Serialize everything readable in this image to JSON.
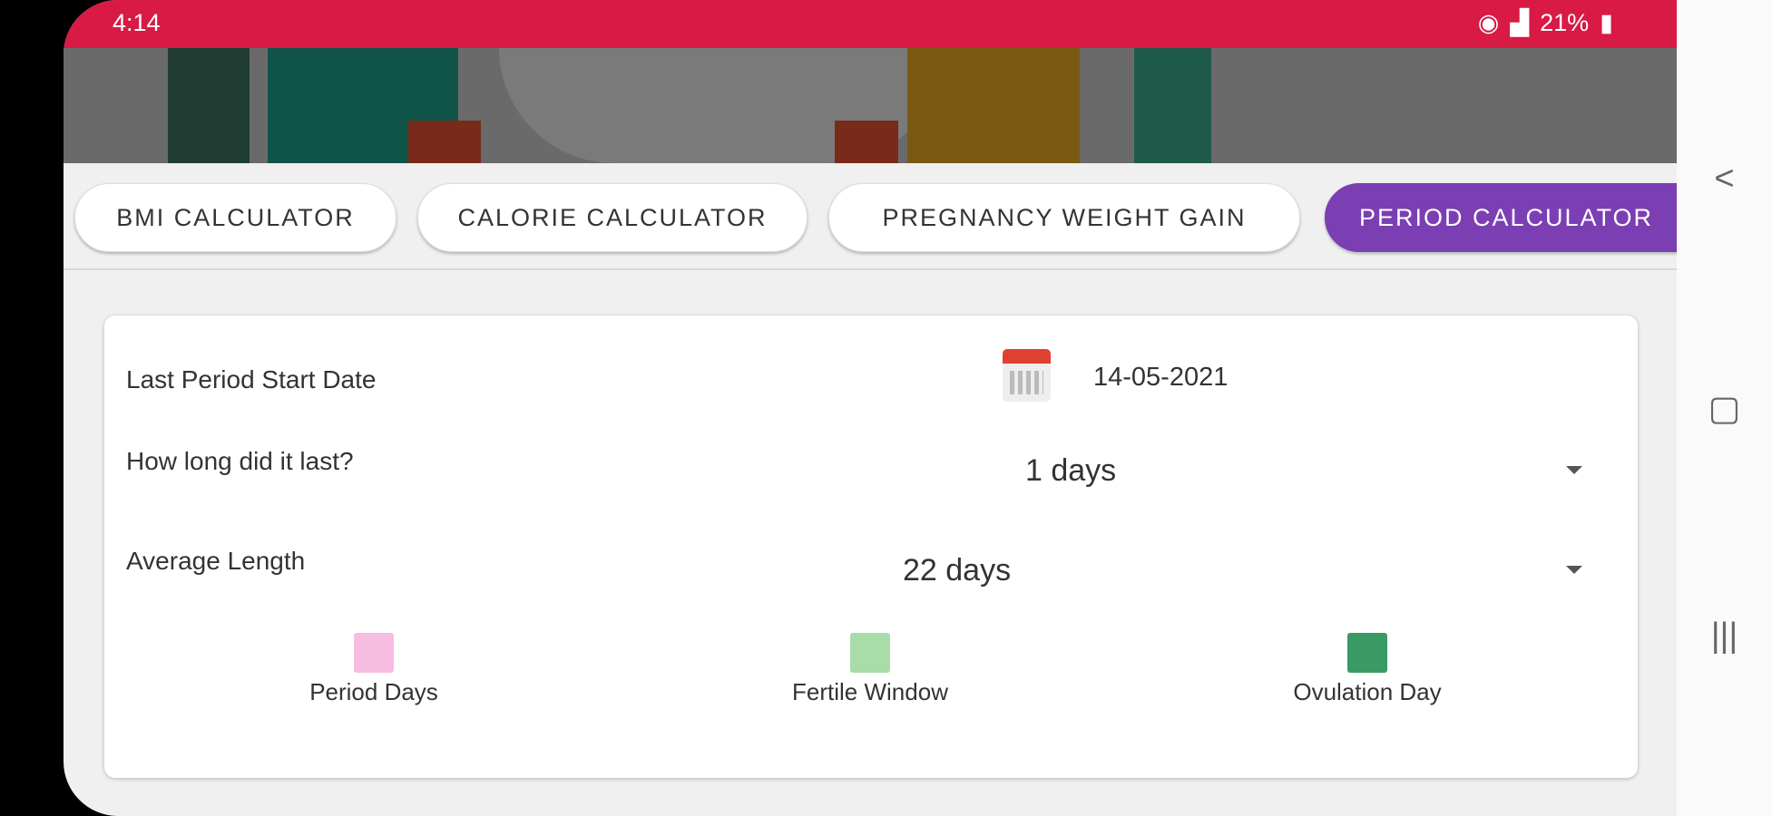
{
  "status_bar": {
    "time": "4:14",
    "battery": "21%"
  },
  "tabs": [
    {
      "label": "BMI CALCULATOR"
    },
    {
      "label": "CALORIE CALCULATOR"
    },
    {
      "label": "PREGNANCY WEIGHT GAIN"
    },
    {
      "label": "PERIOD CALCULATOR",
      "active": true
    }
  ],
  "form": {
    "start_date_label": "Last Period Start Date",
    "start_date_value": "14-05-2021",
    "duration_label": "How long did it last?",
    "duration_value": "1 days",
    "avg_label": "Average Length",
    "avg_value": "22 days"
  },
  "legend": [
    {
      "label": "Period Days",
      "color": "#f7bde0"
    },
    {
      "label": "Fertile Window",
      "color": "#a8dca8"
    },
    {
      "label": "Ovulation Day",
      "color": "#3a9a63"
    }
  ],
  "colors": {
    "status_bar": "#d81a45",
    "active_tab": "#7b3fb3"
  }
}
